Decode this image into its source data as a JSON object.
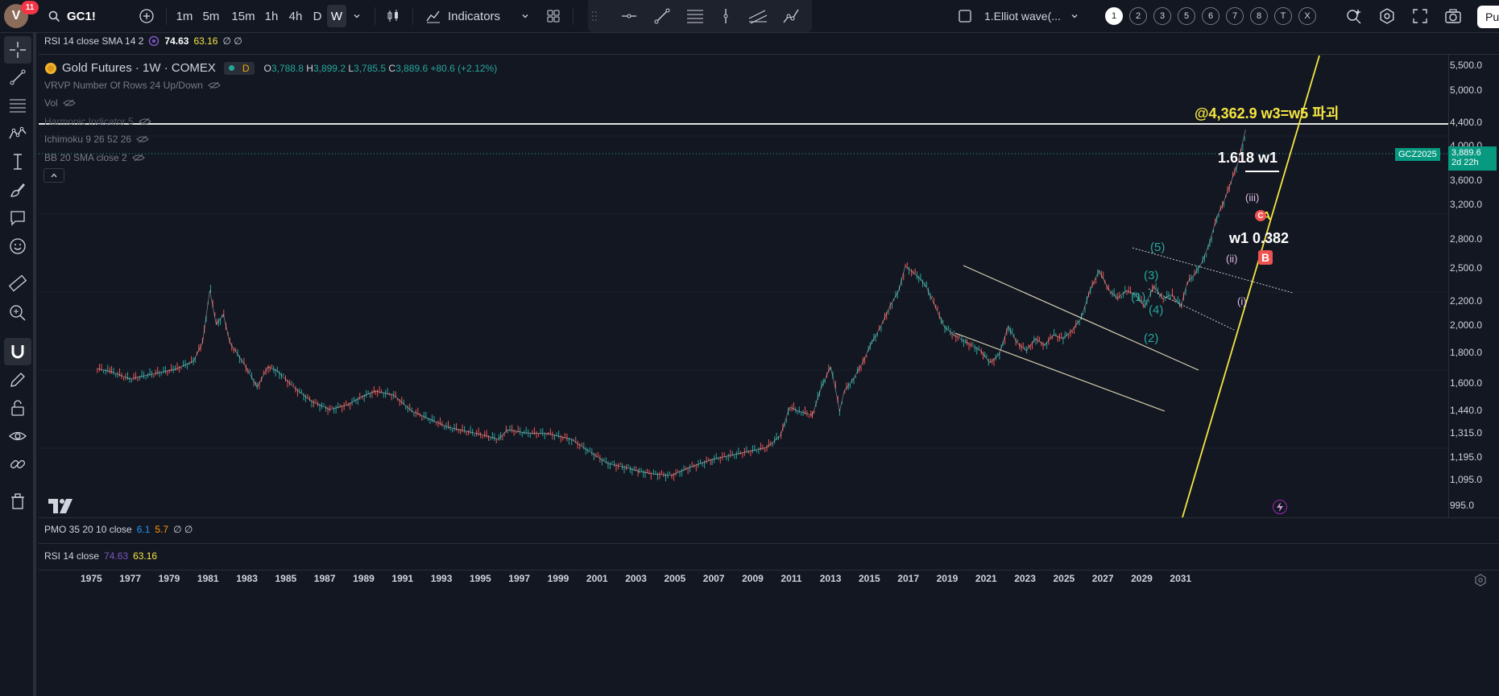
{
  "topbar": {
    "avatar_letter": "V",
    "avatar_badge": "11",
    "symbol": "GC1!",
    "intervals": [
      "1m",
      "5m",
      "15m",
      "1h",
      "4h",
      "D",
      "W"
    ],
    "active_interval": "W",
    "indicators_label": "Indicators",
    "layout_name": "1.Elliot wave(...",
    "pages": [
      "1",
      "2",
      "3",
      "5",
      "6",
      "7",
      "8",
      "T",
      "X"
    ],
    "active_page": "1",
    "publish_label": "Pu"
  },
  "legend": {
    "top_rsi": {
      "label": "RSI 14 close SMA 14 2",
      "v1": "74.63",
      "v2": "63.16",
      "v3": "∅ ∅"
    },
    "instrument": "Gold Futures · 1W · COMEX",
    "session_badge": "D",
    "ohlc": {
      "o_label": "O",
      "o": "3,788.8",
      "h_label": "H",
      "h": "3,899.2",
      "l_label": "L",
      "l": "3,785.5",
      "c_label": "C",
      "c": "3,889.6",
      "chg": "+80.6 (+2.12%)"
    },
    "indicators": [
      "VRVP Number Of Rows 24 Up/Down",
      "Vol",
      "Harmonic Indicator 5",
      "Ichimoku 9 26 52 26",
      "BB 20 SMA close 2"
    ]
  },
  "annotations": {
    "target": "@4,362.9 w3=w5 파괴",
    "fib1": "1.618 w1",
    "fib2": "w1 0.382",
    "wave5": "(5)",
    "wave3": "(3)",
    "wave1": "(1)",
    "wave4": "(4)",
    "wave2": "(2)",
    "label_i": "(i)",
    "label_ii": "(ii)",
    "label_iii": "(iii)",
    "label_B": "B",
    "label_A": "A",
    "label_C": "C"
  },
  "price_axis": {
    "labels": [
      "5,500.0",
      "5,000.0",
      "4,400.0",
      "4,000.0",
      "3,600.0",
      "3,200.0",
      "2,800.0",
      "2,500.0",
      "2,200.0",
      "2,000.0",
      "1,800.0",
      "1,600.0",
      "1,440.0",
      "1,315.0",
      "1,195.0",
      "1,095.0",
      "995.0"
    ],
    "symbol_tag": "GCZ2025",
    "last_price": "3,889.6",
    "countdown": "2d 22h"
  },
  "time_axis": {
    "labels": [
      "1975",
      "1977",
      "1979",
      "1981",
      "1983",
      "1985",
      "1987",
      "1989",
      "1991",
      "1993",
      "1995",
      "1997",
      "1999",
      "2001",
      "2003",
      "2005",
      "2007",
      "2009",
      "2011",
      "2013",
      "2015",
      "2017",
      "2019",
      "2021",
      "2023",
      "2025",
      "2027",
      "2029",
      "2031"
    ]
  },
  "panes": {
    "pmo": {
      "label": "PMO 35 20 10 close",
      "v1": "6.1",
      "v2": "5.7",
      "v3": "∅ ∅"
    },
    "rsi": {
      "label": "RSI 14 close",
      "v1": "74.63",
      "v2": "63.16"
    }
  },
  "colors": {
    "bg": "#131722",
    "up": "#26a69a",
    "down": "#ef5350",
    "trendline": "#f5e642",
    "annotation_yellow": "#f5e642",
    "channel": "#d8d2b0"
  }
}
